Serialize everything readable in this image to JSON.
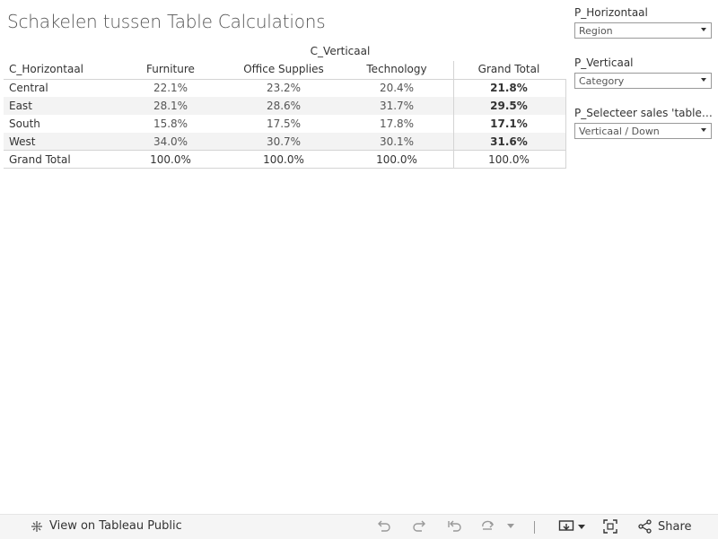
{
  "title": "Schakelen tussen Table Calculations",
  "table": {
    "column_group_label": "C_Verticaal",
    "row_header": "C_Horizontaal",
    "columns": [
      "Furniture",
      "Office Supplies",
      "Technology",
      "Grand Total"
    ],
    "rows": [
      {
        "label": "Central",
        "values": [
          "22.1%",
          "23.2%",
          "20.4%",
          "21.8%"
        ]
      },
      {
        "label": "East",
        "values": [
          "28.1%",
          "28.6%",
          "31.7%",
          "29.5%"
        ]
      },
      {
        "label": "South",
        "values": [
          "15.8%",
          "17.5%",
          "17.8%",
          "17.1%"
        ]
      },
      {
        "label": "West",
        "values": [
          "34.0%",
          "30.7%",
          "30.1%",
          "31.6%"
        ]
      }
    ],
    "grand_total": {
      "label": "Grand Total",
      "values": [
        "100.0%",
        "100.0%",
        "100.0%",
        "100.0%"
      ]
    }
  },
  "parameters": [
    {
      "label": "P_Horizontaal",
      "value": "Region"
    },
    {
      "label": "P_Verticaal",
      "value": "Category"
    },
    {
      "label": "P_Selecteer sales 'table c...",
      "value": "Verticaal / Down"
    }
  ],
  "toolbar": {
    "view_label": "View on Tableau Public",
    "share_label": "Share",
    "icons": [
      "tableau-logo-icon",
      "undo-icon",
      "redo-icon",
      "revert-icon",
      "refresh-icon",
      "pause-icon",
      "download-icon",
      "fullscreen-icon",
      "share-icon"
    ]
  }
}
